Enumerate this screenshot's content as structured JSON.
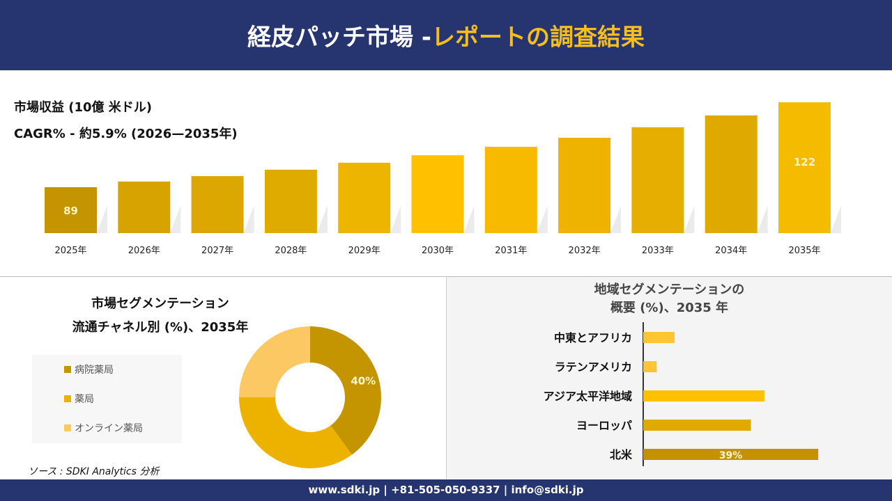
{
  "header": {
    "title_white": "経皮パッチ市場 -",
    "title_yellow": "レポートの調査結果"
  },
  "colors": {
    "navy": "#263470",
    "accent": "#f5bd1f"
  },
  "revenue": {
    "title": "市場収益 (10億 米ドル)",
    "cagr": "CAGR% - 約5.9% (2026—2035年)"
  },
  "chart_data": [
    {
      "type": "bar",
      "categories": [
        "2025年",
        "2026年",
        "2027年",
        "2028年",
        "2029年",
        "2030年",
        "2031年",
        "2032年",
        "2033年",
        "2034年",
        "2035年"
      ],
      "values": [
        89,
        91.2,
        93.3,
        95.8,
        98.5,
        101.4,
        104.7,
        108.2,
        112.3,
        116.9,
        122
      ],
      "data_labels": {
        "0": "89",
        "10": "122"
      },
      "colors": [
        "#c49500",
        "#d6a300",
        "#dba700",
        "#e0ab00",
        "#edb500",
        "#ffc000",
        "#f7ba00",
        "#edb300",
        "#e6ae00",
        "#dfa900",
        "#f5bb00"
      ],
      "title": "市場収益 (10億 米ドル)",
      "grid": false
    },
    {
      "type": "pie",
      "title": "市場セグメンテーション 流通チャネル別 (%)、2035年",
      "labels": [
        "病院薬局",
        "薬局",
        "オンライン薬局"
      ],
      "values": [
        40,
        35,
        25
      ],
      "colors": [
        "#c49500",
        "#edb200",
        "#fcc864"
      ],
      "data_labels": {
        "0": "40%"
      },
      "legend": "left"
    },
    {
      "type": "bar",
      "orientation": "horizontal",
      "title": "地域セグメンテーションの 概要 (%)、2035 年",
      "categories": [
        "中東とアフリカ",
        "ラテンアメリカ",
        "アジア太平洋地域",
        "ヨーロッパ",
        "北米"
      ],
      "values": [
        7,
        3,
        27,
        24,
        39
      ],
      "data_labels": {
        "4": "39%"
      },
      "colors": [
        "#fcc531",
        "#fcc531",
        "#ffc000",
        "#e0aa00",
        "#c49200"
      ]
    }
  ],
  "left": {
    "title1": "市場セグメンテーション",
    "title2": "流通チャネル別 (%)、2035年"
  },
  "right": {
    "title1": "地域セグメンテーションの",
    "title2": "概要 (%)、2035 年"
  },
  "source": "ソース : SDKI Analytics 分析",
  "footer": "www.sdki.jp | +81-505-050-9337 | info@sdki.jp"
}
